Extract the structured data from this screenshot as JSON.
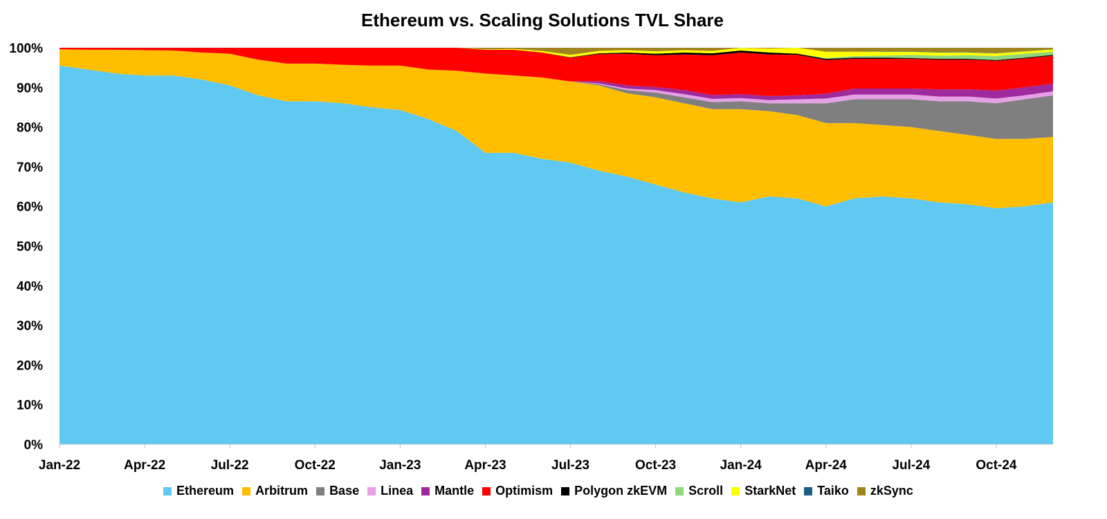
{
  "chart_data": {
    "type": "area",
    "stacked": true,
    "normalized": true,
    "title": "Ethereum vs. Scaling Solutions TVL Share",
    "xlabel": "",
    "ylabel": "",
    "ylim": [
      0,
      100
    ],
    "y_ticks": [
      "0%",
      "10%",
      "20%",
      "30%",
      "40%",
      "50%",
      "60%",
      "70%",
      "80%",
      "90%",
      "100%"
    ],
    "x_ticks": [
      "Jan-22",
      "Apr-22",
      "Jul-22",
      "Oct-22",
      "Jan-23",
      "Apr-23",
      "Jul-23",
      "Oct-23",
      "Jan-24",
      "Apr-24",
      "Jul-24",
      "Oct-24"
    ],
    "x": [
      "Jan-22",
      "Feb-22",
      "Mar-22",
      "Apr-22",
      "May-22",
      "Jun-22",
      "Jul-22",
      "Aug-22",
      "Sep-22",
      "Oct-22",
      "Nov-22",
      "Dec-22",
      "Jan-23",
      "Feb-23",
      "Mar-23",
      "Apr-23",
      "May-23",
      "Jun-23",
      "Jul-23",
      "Aug-23",
      "Sep-23",
      "Oct-23",
      "Nov-23",
      "Dec-23",
      "Jan-24",
      "Feb-24",
      "Mar-24",
      "Apr-24",
      "May-24",
      "Jun-24",
      "Jul-24",
      "Aug-24",
      "Sep-24",
      "Oct-24",
      "Nov-24",
      "Dec-24"
    ],
    "legend_position": "bottom",
    "series": [
      {
        "name": "Ethereum",
        "color": "#5FC9F2",
        "values": [
          95.5,
          94.5,
          93.5,
          93,
          93,
          92,
          90.5,
          88,
          86.5,
          86.5,
          86,
          85,
          84.3,
          82,
          79,
          73.5,
          73.5,
          72,
          71,
          69,
          67.5,
          65.5,
          63.5,
          62,
          61,
          62.5,
          62,
          60,
          62,
          62.5,
          62,
          61,
          60.5,
          59.5,
          60,
          61
        ]
      },
      {
        "name": "Arbitrum",
        "color": "#FFBF00",
        "values": [
          4.1,
          5,
          6,
          6.4,
          6.3,
          6.8,
          8,
          9,
          9.5,
          9.5,
          9.7,
          10.5,
          11.2,
          12.5,
          15.2,
          20,
          19.5,
          20.5,
          20.5,
          21.5,
          21,
          22,
          22.5,
          22.5,
          23.5,
          21.5,
          21,
          21,
          19,
          18,
          18,
          18,
          17.5,
          17.5,
          17,
          16.5
        ]
      },
      {
        "name": "Base",
        "color": "#7F7F7F",
        "values": [
          0,
          0,
          0,
          0,
          0,
          0,
          0,
          0,
          0,
          0,
          0,
          0,
          0,
          0,
          0,
          0,
          0,
          0,
          0,
          0.3,
          0.8,
          1.2,
          1.5,
          1.8,
          2,
          2,
          3,
          5,
          6,
          6.5,
          7,
          7.5,
          8.5,
          9,
          10,
          10.5
        ]
      },
      {
        "name": "Linea",
        "color": "#E6A0E6",
        "values": [
          0,
          0,
          0,
          0,
          0,
          0,
          0,
          0,
          0,
          0,
          0,
          0,
          0,
          0,
          0,
          0,
          0,
          0,
          0,
          0.2,
          0.4,
          0.6,
          0.8,
          0.8,
          0.8,
          0.8,
          1,
          1.2,
          1.2,
          1.2,
          1.2,
          1.2,
          1.2,
          1.2,
          1,
          1
        ]
      },
      {
        "name": "Mantle",
        "color": "#9E2A9E",
        "values": [
          0,
          0,
          0,
          0,
          0,
          0,
          0,
          0,
          0,
          0,
          0,
          0,
          0,
          0,
          0,
          0,
          0,
          0,
          0,
          0.6,
          0.8,
          0.8,
          1,
          1,
          1,
          1,
          1,
          1.2,
          1.5,
          1.5,
          1.5,
          1.8,
          1.8,
          2,
          2,
          2
        ]
      },
      {
        "name": "Optimism",
        "color": "#FF0000",
        "values": [
          0.4,
          0.5,
          0.5,
          0.6,
          0.7,
          1.2,
          1.5,
          3,
          4,
          4,
          4.3,
          4.5,
          4.5,
          5.5,
          5.8,
          6,
          6.5,
          6.3,
          6,
          6.8,
          8,
          8,
          9,
          10,
          10.5,
          10.5,
          10.2,
          8.5,
          7.5,
          7.5,
          7.5,
          7.5,
          7.5,
          7.5,
          7.3,
          7
        ]
      },
      {
        "name": "Polygon zkEVM",
        "color": "#000000",
        "values": [
          0,
          0,
          0,
          0,
          0,
          0,
          0,
          0,
          0,
          0,
          0,
          0,
          0,
          0,
          0,
          0,
          0,
          0,
          0.1,
          0.2,
          0.3,
          0.4,
          0.5,
          0.5,
          0.5,
          0.5,
          0.3,
          0.3,
          0.3,
          0.3,
          0.2,
          0.2,
          0.2,
          0.2,
          0.2,
          0.2
        ]
      },
      {
        "name": "Scroll",
        "color": "#8FD67F",
        "values": [
          0,
          0,
          0,
          0,
          0,
          0,
          0,
          0,
          0,
          0,
          0,
          0,
          0,
          0,
          0,
          0,
          0,
          0,
          0,
          0,
          0,
          0,
          0,
          0,
          0,
          0,
          0,
          0.2,
          0.4,
          0.5,
          0.8,
          0.8,
          0.9,
          1,
          1,
          0.8
        ]
      },
      {
        "name": "StarkNet",
        "color": "#FFFF00",
        "values": [
          0,
          0,
          0,
          0,
          0,
          0,
          0,
          0,
          0,
          0,
          0,
          0,
          0,
          0,
          0,
          0.1,
          0.2,
          0.4,
          0.6,
          0.6,
          0.6,
          0.6,
          0.6,
          0.6,
          0.7,
          1,
          1.8,
          1.6,
          1.1,
          1,
          0.8,
          0.8,
          0.7,
          0.7,
          0.6,
          0.6
        ]
      },
      {
        "name": "Taiko",
        "color": "#1A5E80",
        "values": [
          0,
          0,
          0,
          0,
          0,
          0,
          0,
          0,
          0,
          0,
          0,
          0,
          0,
          0,
          0,
          0,
          0,
          0,
          0,
          0,
          0,
          0,
          0,
          0,
          0,
          0,
          0,
          0,
          0,
          0.1,
          0.1,
          0.1,
          0.1,
          0.1,
          0.1,
          0.1
        ]
      },
      {
        "name": "zkSync",
        "color": "#A0841E",
        "values": [
          0,
          0,
          0,
          0,
          0,
          0,
          0,
          0,
          0,
          0,
          0,
          0,
          0,
          0,
          0,
          0.4,
          0.3,
          0.8,
          1.3,
          0.8,
          0.6,
          0.5,
          0.5,
          0.7,
          0.5,
          0.7,
          0.7,
          0.5,
          0.6,
          0.5,
          0.6,
          0.6,
          0.6,
          0.7,
          0.6,
          0.6
        ]
      }
    ]
  }
}
